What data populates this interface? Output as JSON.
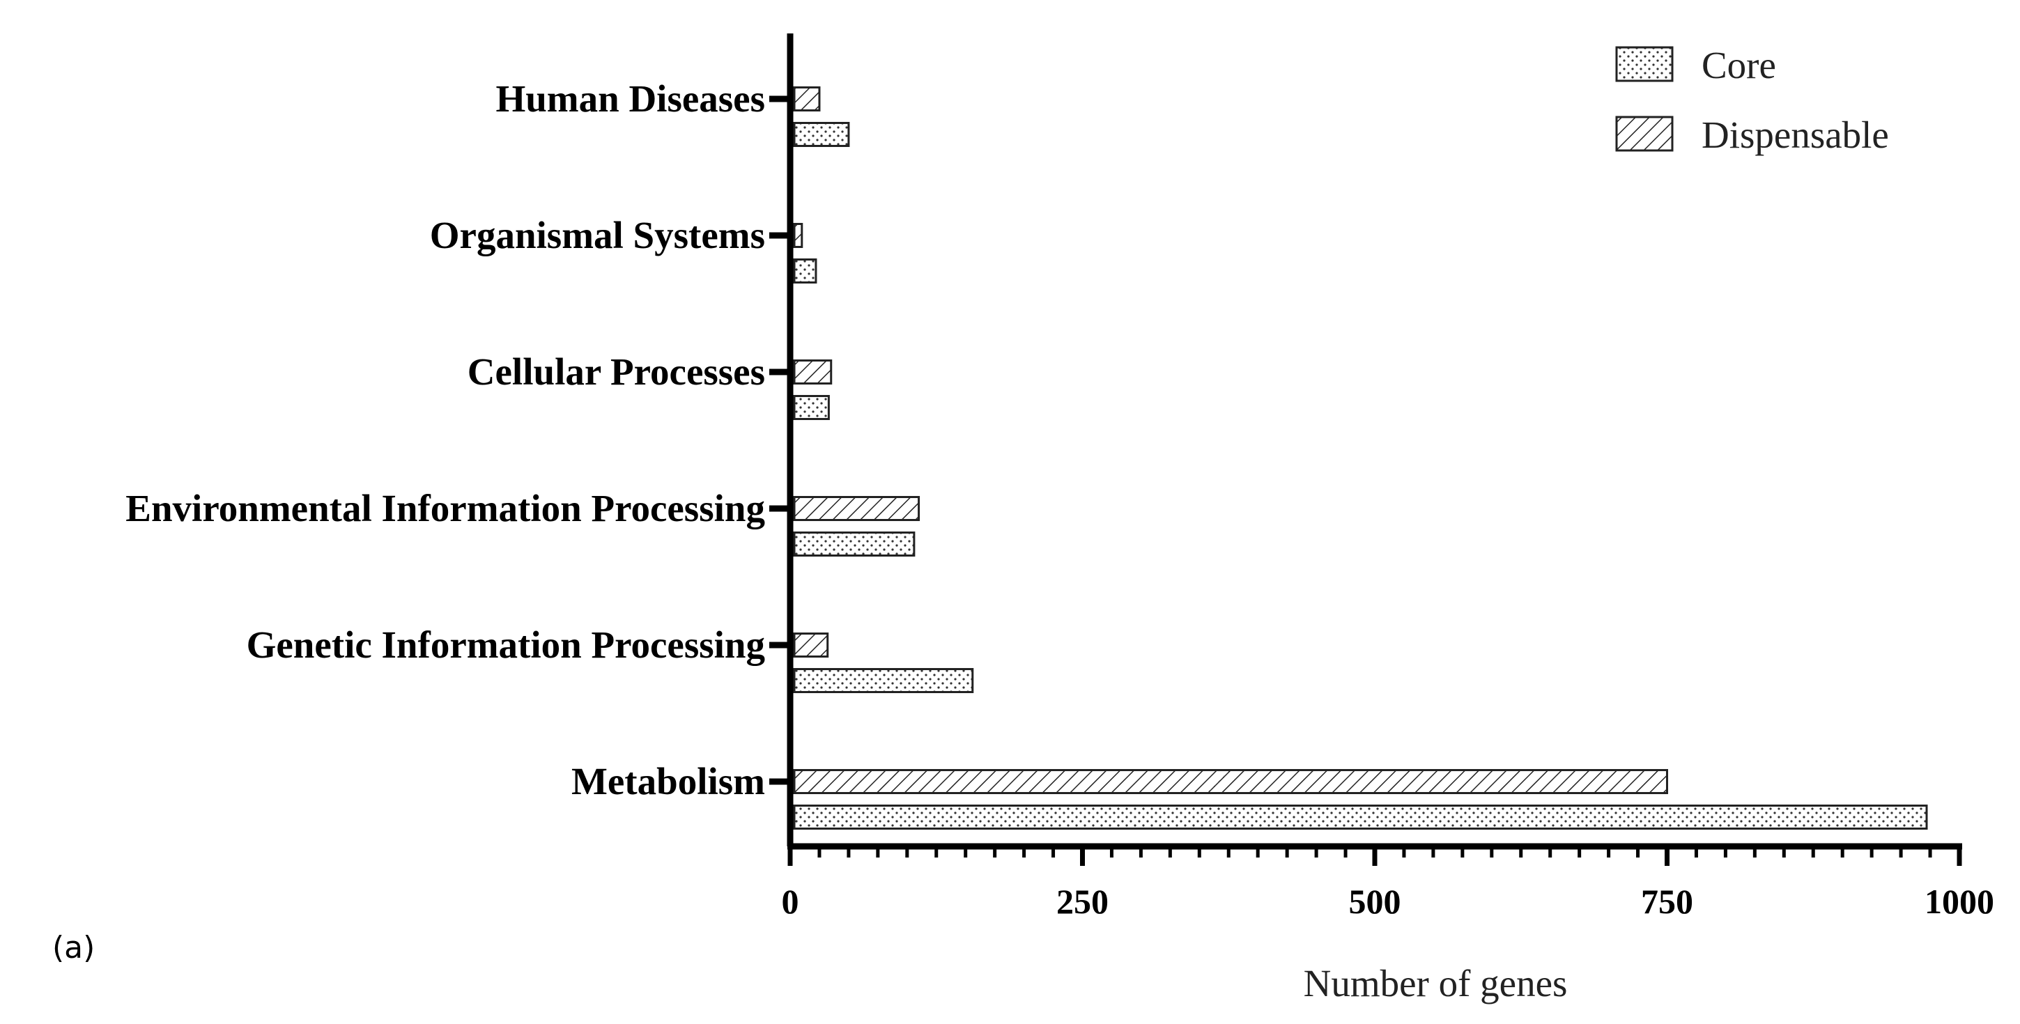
{
  "panel_label": "(a)",
  "chart_data": {
    "type": "bar",
    "orientation": "horizontal",
    "title": "",
    "xlabel": "Number of genes",
    "ylabel": "",
    "xlim": [
      0,
      1000
    ],
    "xticks": [
      "0",
      "250",
      "500",
      "750",
      "1000"
    ],
    "xtick_values": [
      0,
      250,
      500,
      750,
      1000
    ],
    "categories": [
      "Human Diseases",
      "Organismal Systems",
      "Cellular Processes",
      "Environmental Information Processing",
      "Genetic Information Processing",
      "Metabolism"
    ],
    "series": [
      {
        "name": "Dispensable",
        "pattern": "hatch",
        "values": [
          25,
          10,
          35,
          110,
          32,
          750
        ]
      },
      {
        "name": "Core",
        "pattern": "dots",
        "values": [
          50,
          22,
          33,
          106,
          156,
          972
        ]
      }
    ],
    "legend": {
      "position": "top-right",
      "items": [
        "Core",
        "Dispensable"
      ]
    }
  }
}
